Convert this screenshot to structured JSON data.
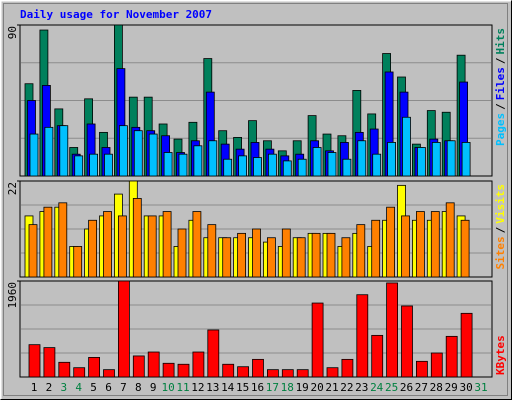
{
  "title": "Daily usage for November 2007",
  "legend_separator": "/",
  "categories": [
    "1",
    "2",
    "3",
    "4",
    "5",
    "6",
    "7",
    "8",
    "9",
    "10",
    "11",
    "12",
    "13",
    "14",
    "15",
    "16",
    "17",
    "18",
    "19",
    "20",
    "21",
    "22",
    "23",
    "24",
    "25",
    "26",
    "27",
    "28",
    "29",
    "30",
    "31"
  ],
  "category_colors": [
    "#000000",
    "#000000",
    "#008040",
    "#008040",
    "#000000",
    "#000000",
    "#000000",
    "#000000",
    "#000000",
    "#008040",
    "#008040",
    "#000000",
    "#000000",
    "#000000",
    "#000000",
    "#000000",
    "#008040",
    "#008040",
    "#000000",
    "#000000",
    "#000000",
    "#000000",
    "#000000",
    "#008040",
    "#008040",
    "#000000",
    "#000000",
    "#000000",
    "#000000",
    "#000000",
    "#008040"
  ],
  "chart_data": [
    {
      "type": "bar",
      "ylim": [
        0,
        90
      ],
      "yticks": [
        90
      ],
      "series": [
        {
          "name": "Pages",
          "color": "#00c0ff",
          "values": [
            25,
            29,
            30,
            12,
            13,
            13,
            30,
            27,
            25,
            14,
            13,
            18,
            21,
            10,
            12,
            11,
            13,
            9,
            10,
            17,
            14,
            10,
            21,
            13,
            20,
            35,
            17,
            20,
            21,
            20,
            null
          ]
        },
        {
          "name": "Files",
          "color": "#0000ff",
          "values": [
            45,
            54,
            30,
            13,
            31,
            17,
            64,
            29,
            27,
            24,
            14,
            21,
            50,
            19,
            16,
            20,
            16,
            12,
            13,
            21,
            15,
            20,
            26,
            28,
            62,
            50,
            17,
            22,
            21,
            56,
            null
          ]
        },
        {
          "name": "Hits",
          "color": "#00805c",
          "values": [
            55,
            87,
            40,
            17,
            46,
            26,
            90,
            47,
            47,
            31,
            22,
            32,
            70,
            27,
            23,
            33,
            21,
            15,
            21,
            36,
            25,
            24,
            51,
            37,
            73,
            59,
            19,
            39,
            38,
            72,
            null
          ]
        }
      ]
    },
    {
      "type": "bar",
      "ylim": [
        0,
        22
      ],
      "yticks": [
        22
      ],
      "series": [
        {
          "name": "Sites",
          "color": "#ff8000",
          "values": [
            12,
            16,
            17,
            7,
            13,
            15,
            14,
            18,
            14,
            15,
            11,
            15,
            12,
            9,
            10,
            11,
            9,
            11,
            9,
            10,
            10,
            9,
            12,
            13,
            16,
            14,
            15,
            15,
            17,
            13,
            null
          ]
        },
        {
          "name": "Visits",
          "color": "#ffff00",
          "values": [
            14,
            15,
            16,
            7,
            11,
            14,
            19,
            22,
            14,
            14,
            7,
            13,
            9,
            9,
            9,
            9,
            8,
            7,
            9,
            10,
            10,
            7,
            10,
            7,
            13,
            21,
            13,
            13,
            15,
            14,
            null
          ]
        }
      ]
    },
    {
      "type": "bar",
      "ylim": [
        0,
        1960
      ],
      "yticks": [
        1960
      ],
      "series": [
        {
          "name": "KBytes",
          "color": "#ff0000",
          "values": [
            660,
            600,
            300,
            190,
            400,
            150,
            1960,
            430,
            510,
            280,
            260,
            510,
            960,
            260,
            210,
            360,
            150,
            150,
            150,
            1510,
            190,
            360,
            1680,
            850,
            1920,
            1450,
            320,
            490,
            830,
            1300,
            null
          ]
        }
      ]
    }
  ]
}
